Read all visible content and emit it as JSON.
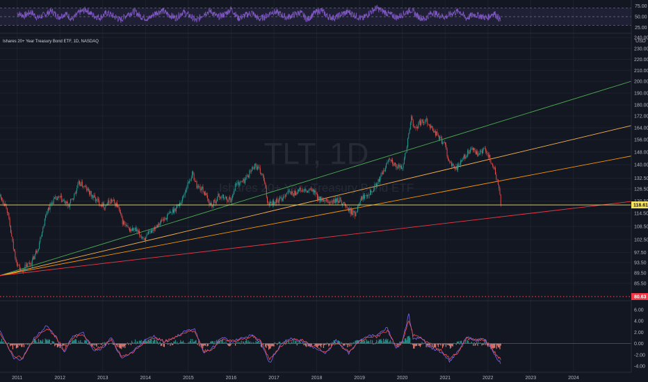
{
  "chart_data": [
    {
      "type": "line",
      "panel": "rsi",
      "ylim": [
        15,
        85
      ],
      "y_ticks": [
        "75.00",
        "50.00",
        "25.00"
      ],
      "band": [
        30,
        70
      ],
      "series": [
        {
          "values": [
            58,
            52,
            61,
            47,
            55,
            63,
            49,
            57,
            44,
            60,
            66,
            53,
            48,
            59,
            51,
            42,
            56,
            62,
            50,
            45,
            58,
            64,
            54,
            47,
            61,
            52,
            40,
            57,
            63,
            49,
            55,
            68,
            46,
            53,
            59,
            44,
            51,
            62,
            57,
            48,
            54,
            60,
            43,
            58,
            65,
            50,
            47,
            56,
            61,
            52,
            45,
            59,
            70,
            62,
            55,
            48,
            57,
            66,
            51,
            44,
            60,
            54,
            49,
            58,
            63,
            46,
            55,
            52,
            47,
            59,
            42
          ]
        }
      ],
      "x_range": [
        2011,
        2022.3
      ]
    },
    {
      "type": "candlestick",
      "panel": "price",
      "title": "Ishares 20+ Year Treasury Bond ETF, 1D, NASDAQ",
      "watermark_symbol": "TLT, 1D",
      "watermark_name": "Ishares 20+ Year Treasury Bond ETF",
      "currency": "USD",
      "ylim": [
        83,
        242
      ],
      "y_ticks": [
        "240.00",
        "230.00",
        "220.00",
        "210.00",
        "200.00",
        "190.00",
        "180.00",
        "172.00",
        "164.00",
        "156.00",
        "148.00",
        "140.00",
        "132.50",
        "126.50",
        "120.50",
        "114.50",
        "108.50",
        "102.50",
        "97.50",
        "93.50",
        "89.50",
        "85.50"
      ],
      "x_ticks": [
        "2011",
        "2012",
        "2013",
        "2014",
        "2015",
        "2016",
        "2017",
        "2018",
        "2019",
        "2020",
        "2021",
        "2022",
        "2023",
        "2024"
      ],
      "x_range": [
        2010.6,
        2025.35
      ],
      "close_path": [
        [
          2010.6,
          123
        ],
        [
          2010.75,
          118
        ],
        [
          2010.9,
          100
        ],
        [
          2011.0,
          93
        ],
        [
          2011.1,
          90
        ],
        [
          2011.2,
          92
        ],
        [
          2011.35,
          94
        ],
        [
          2011.5,
          100
        ],
        [
          2011.6,
          108
        ],
        [
          2011.7,
          116
        ],
        [
          2011.85,
          121
        ],
        [
          2012.0,
          122
        ],
        [
          2012.2,
          118
        ],
        [
          2012.35,
          124
        ],
        [
          2012.45,
          130
        ],
        [
          2012.6,
          127
        ],
        [
          2012.75,
          123
        ],
        [
          2012.9,
          120
        ],
        [
          2013.05,
          118
        ],
        [
          2013.2,
          121
        ],
        [
          2013.35,
          118
        ],
        [
          2013.45,
          111
        ],
        [
          2013.6,
          107
        ],
        [
          2013.75,
          107
        ],
        [
          2013.9,
          104
        ],
        [
          2014.0,
          103
        ],
        [
          2014.15,
          107
        ],
        [
          2014.3,
          110
        ],
        [
          2014.45,
          112
        ],
        [
          2014.6,
          115
        ],
        [
          2014.75,
          118
        ],
        [
          2014.85,
          121
        ],
        [
          2015.0,
          130
        ],
        [
          2015.1,
          135
        ],
        [
          2015.2,
          128
        ],
        [
          2015.35,
          126
        ],
        [
          2015.45,
          121
        ],
        [
          2015.55,
          118
        ],
        [
          2015.7,
          123
        ],
        [
          2015.85,
          122
        ],
        [
          2016.0,
          121
        ],
        [
          2016.1,
          129
        ],
        [
          2016.3,
          131
        ],
        [
          2016.45,
          136
        ],
        [
          2016.55,
          140
        ],
        [
          2016.65,
          137
        ],
        [
          2016.75,
          133
        ],
        [
          2016.85,
          120
        ],
        [
          2017.0,
          120
        ],
        [
          2017.15,
          121
        ],
        [
          2017.3,
          125
        ],
        [
          2017.45,
          124
        ],
        [
          2017.6,
          126
        ],
        [
          2017.75,
          125
        ],
        [
          2017.9,
          126
        ],
        [
          2018.0,
          123
        ],
        [
          2018.15,
          120
        ],
        [
          2018.35,
          120
        ],
        [
          2018.55,
          121
        ],
        [
          2018.75,
          116
        ],
        [
          2018.9,
          114
        ],
        [
          2019.0,
          121
        ],
        [
          2019.15,
          124
        ],
        [
          2019.3,
          126
        ],
        [
          2019.45,
          131
        ],
        [
          2019.6,
          138
        ],
        [
          2019.7,
          145
        ],
        [
          2019.85,
          138
        ],
        [
          2020.0,
          139
        ],
        [
          2020.1,
          150
        ],
        [
          2020.2,
          171
        ],
        [
          2020.28,
          163
        ],
        [
          2020.4,
          167
        ],
        [
          2020.55,
          170
        ],
        [
          2020.7,
          163
        ],
        [
          2020.85,
          158
        ],
        [
          2021.0,
          152
        ],
        [
          2021.1,
          141
        ],
        [
          2021.2,
          138
        ],
        [
          2021.3,
          139
        ],
        [
          2021.45,
          145
        ],
        [
          2021.55,
          148
        ],
        [
          2021.65,
          150
        ],
        [
          2021.75,
          146
        ],
        [
          2021.85,
          148
        ],
        [
          2021.95,
          150
        ],
        [
          2022.05,
          143
        ],
        [
          2022.15,
          137
        ],
        [
          2022.25,
          128
        ],
        [
          2022.3,
          118.61
        ]
      ],
      "trend_lines": [
        {
          "color": "#4caf50",
          "from": [
            2010.6,
            88.5
          ],
          "to": [
            2025.35,
            200
          ]
        },
        {
          "color": "#ffb74d",
          "from": [
            2010.6,
            88.5
          ],
          "to": [
            2025.35,
            165.5
          ]
        },
        {
          "color": "#ff9800",
          "from": [
            2010.6,
            88.5
          ],
          "to": [
            2025.35,
            145.5
          ]
        },
        {
          "color": "#f23645",
          "from": [
            2010.6,
            88.5
          ],
          "to": [
            2025.35,
            120.3
          ]
        }
      ],
      "horizontal_line": {
        "value": 118.61,
        "label": "118.61",
        "color": "#f7e463"
      },
      "dotted_line": {
        "value": 80.63,
        "label": "80.63",
        "color": "#f23645"
      },
      "colors": {
        "up": "#26a69a",
        "down": "#ef5350"
      }
    },
    {
      "type": "line",
      "panel": "oscillator",
      "ylim": [
        -4.6,
        7.2
      ],
      "y_ticks": [
        "6.00",
        "4.00",
        "2.00",
        "0.00",
        "-2.00",
        "-4.00"
      ],
      "x_range": [
        2010.6,
        2025.35
      ],
      "series": [
        {
          "name": "",
          "color": "#7b68ee",
          "values": [
            [
              2010.6,
              2.5
            ],
            [
              2010.9,
              -2.5
            ],
            [
              2011.1,
              -3.0
            ],
            [
              2011.4,
              1.0
            ],
            [
              2011.7,
              3.2
            ],
            [
              2011.9,
              1.0
            ],
            [
              2012.1,
              -1.6
            ],
            [
              2012.3,
              1.5
            ],
            [
              2012.55,
              1.8
            ],
            [
              2012.8,
              -1.2
            ],
            [
              2013.0,
              -0.8
            ],
            [
              2013.2,
              1.0
            ],
            [
              2013.45,
              -2.8
            ],
            [
              2013.7,
              -1.4
            ],
            [
              2013.95,
              0.4
            ],
            [
              2014.2,
              1.3
            ],
            [
              2014.45,
              0.2
            ],
            [
              2014.7,
              1.2
            ],
            [
              2014.95,
              2.2
            ],
            [
              2015.15,
              2.7
            ],
            [
              2015.35,
              -1.7
            ],
            [
              2015.55,
              -0.9
            ],
            [
              2015.8,
              1.2
            ],
            [
              2016.0,
              0.2
            ],
            [
              2016.2,
              0.8
            ],
            [
              2016.5,
              1.5
            ],
            [
              2016.7,
              0.2
            ],
            [
              2016.9,
              -3.5
            ],
            [
              2017.15,
              -0.2
            ],
            [
              2017.4,
              0.8
            ],
            [
              2017.7,
              0.4
            ],
            [
              2017.95,
              -0.8
            ],
            [
              2018.2,
              -1.8
            ],
            [
              2018.45,
              0.5
            ],
            [
              2018.75,
              -1.8
            ],
            [
              2018.95,
              0.3
            ],
            [
              2019.15,
              1.3
            ],
            [
              2019.4,
              1.4
            ],
            [
              2019.65,
              2.8
            ],
            [
              2019.85,
              -0.8
            ],
            [
              2020.0,
              0.3
            ],
            [
              2020.15,
              5.2
            ],
            [
              2020.25,
              1.0
            ],
            [
              2020.45,
              0.8
            ],
            [
              2020.7,
              -0.8
            ],
            [
              2020.9,
              -1.5
            ],
            [
              2021.1,
              -3.1
            ],
            [
              2021.3,
              -1.5
            ],
            [
              2021.5,
              1.2
            ],
            [
              2021.7,
              0.5
            ],
            [
              2021.9,
              0.8
            ],
            [
              2022.05,
              -0.5
            ],
            [
              2022.2,
              -2.6
            ],
            [
              2022.3,
              -3.5
            ]
          ]
        },
        {
          "name": "",
          "color": "#ef5350",
          "values": [
            [
              2010.6,
              2.0
            ],
            [
              2010.9,
              -2.0
            ],
            [
              2011.1,
              -2.6
            ],
            [
              2011.4,
              0.6
            ],
            [
              2011.7,
              2.8
            ],
            [
              2011.9,
              1.2
            ],
            [
              2012.1,
              -1.2
            ],
            [
              2012.3,
              1.1
            ],
            [
              2012.55,
              1.5
            ],
            [
              2012.8,
              -0.9
            ],
            [
              2013.0,
              -0.6
            ],
            [
              2013.2,
              0.7
            ],
            [
              2013.45,
              -2.3
            ],
            [
              2013.7,
              -1.6
            ],
            [
              2013.95,
              0.1
            ],
            [
              2014.2,
              1.0
            ],
            [
              2014.45,
              0.4
            ],
            [
              2014.7,
              1.0
            ],
            [
              2014.95,
              1.9
            ],
            [
              2015.15,
              2.3
            ],
            [
              2015.35,
              -1.3
            ],
            [
              2015.55,
              -1.1
            ],
            [
              2015.8,
              0.9
            ],
            [
              2016.0,
              0.4
            ],
            [
              2016.2,
              0.6
            ],
            [
              2016.5,
              1.2
            ],
            [
              2016.7,
              0.4
            ],
            [
              2016.9,
              -2.9
            ],
            [
              2017.15,
              -0.5
            ],
            [
              2017.4,
              0.6
            ],
            [
              2017.7,
              0.5
            ],
            [
              2017.95,
              -0.5
            ],
            [
              2018.2,
              -1.5
            ],
            [
              2018.45,
              0.2
            ],
            [
              2018.75,
              -1.5
            ],
            [
              2018.95,
              0.0
            ],
            [
              2019.15,
              1.0
            ],
            [
              2019.4,
              1.2
            ],
            [
              2019.65,
              2.3
            ],
            [
              2019.85,
              -0.4
            ],
            [
              2020.0,
              0.1
            ],
            [
              2020.15,
              4.2
            ],
            [
              2020.25,
              1.5
            ],
            [
              2020.45,
              0.9
            ],
            [
              2020.7,
              -0.5
            ],
            [
              2020.9,
              -1.2
            ],
            [
              2021.1,
              -2.6
            ],
            [
              2021.3,
              -1.7
            ],
            [
              2021.5,
              0.9
            ],
            [
              2021.7,
              0.6
            ],
            [
              2021.9,
              0.7
            ],
            [
              2022.05,
              -0.2
            ],
            [
              2022.2,
              -2.1
            ],
            [
              2022.3,
              -2.9
            ]
          ]
        }
      ]
    }
  ]
}
